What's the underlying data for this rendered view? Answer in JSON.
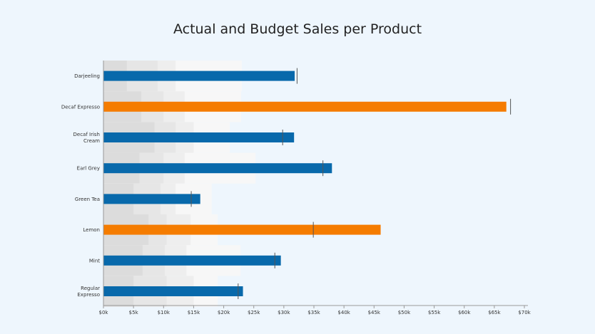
{
  "chart_data": {
    "type": "bar",
    "title": "Actual and Budget Sales per Product",
    "orientation": "horizontal",
    "categories": [
      "Darjeeling",
      "Decaf Expresso",
      "Decaf Irish Cream",
      "Earl Grey",
      "Green Tea",
      "Lemon",
      "Mint",
      "Regular Expresso"
    ],
    "category_label_lines": [
      [
        "Darjeeling"
      ],
      [
        "Decaf Expresso"
      ],
      [
        "Decaf Irish",
        "Cream"
      ],
      [
        "Earl Grey"
      ],
      [
        "Green Tea"
      ],
      [
        "Lemon"
      ],
      [
        "Mint"
      ],
      [
        "Regular",
        "Expresso"
      ]
    ],
    "series": [
      {
        "values": [
          31800,
          67000,
          31700,
          38000,
          16100,
          46100,
          29500,
          23200
        ]
      },
      {
        "values": [
          32200,
          67700,
          29800,
          36500,
          14600,
          34900,
          28500,
          22400
        ]
      }
    ],
    "highlight": [
      false,
      true,
      false,
      false,
      false,
      true,
      false,
      false
    ],
    "background_ranges": [
      [
        3900,
        9000,
        12000,
        23000
      ],
      [
        6300,
        10000,
        13500,
        22900
      ],
      [
        8500,
        12000,
        15000,
        21000
      ],
      [
        6000,
        10000,
        13500,
        25300
      ],
      [
        5000,
        9500,
        12000,
        18000
      ],
      [
        7500,
        10500,
        14500,
        19000
      ],
      [
        6500,
        10200,
        13800,
        22800
      ],
      [
        5000,
        10500,
        15000,
        19000
      ]
    ],
    "xlim": [
      0,
      70000
    ],
    "x_ticks": [
      0,
      5000,
      10000,
      15000,
      20000,
      25000,
      30000,
      35000,
      40000,
      45000,
      50000,
      55000,
      60000,
      65000,
      70000
    ],
    "x_tick_labels": [
      "$0k",
      "$5k",
      "$10k",
      "$15k",
      "$20k",
      "$25k",
      "$30k",
      "$35k",
      "$40k",
      "$45k",
      "$50k",
      "$55k",
      "$60k",
      "$65k",
      "$70k"
    ],
    "grid": false,
    "colors": {
      "bar": "#0869ab",
      "bar_highlight": "#f57c00",
      "target": "#555555",
      "ranges": [
        "#dcdcdc",
        "#e6e6e6",
        "#eeeeee",
        "#f7f7f7"
      ],
      "axis": "#999999"
    }
  }
}
